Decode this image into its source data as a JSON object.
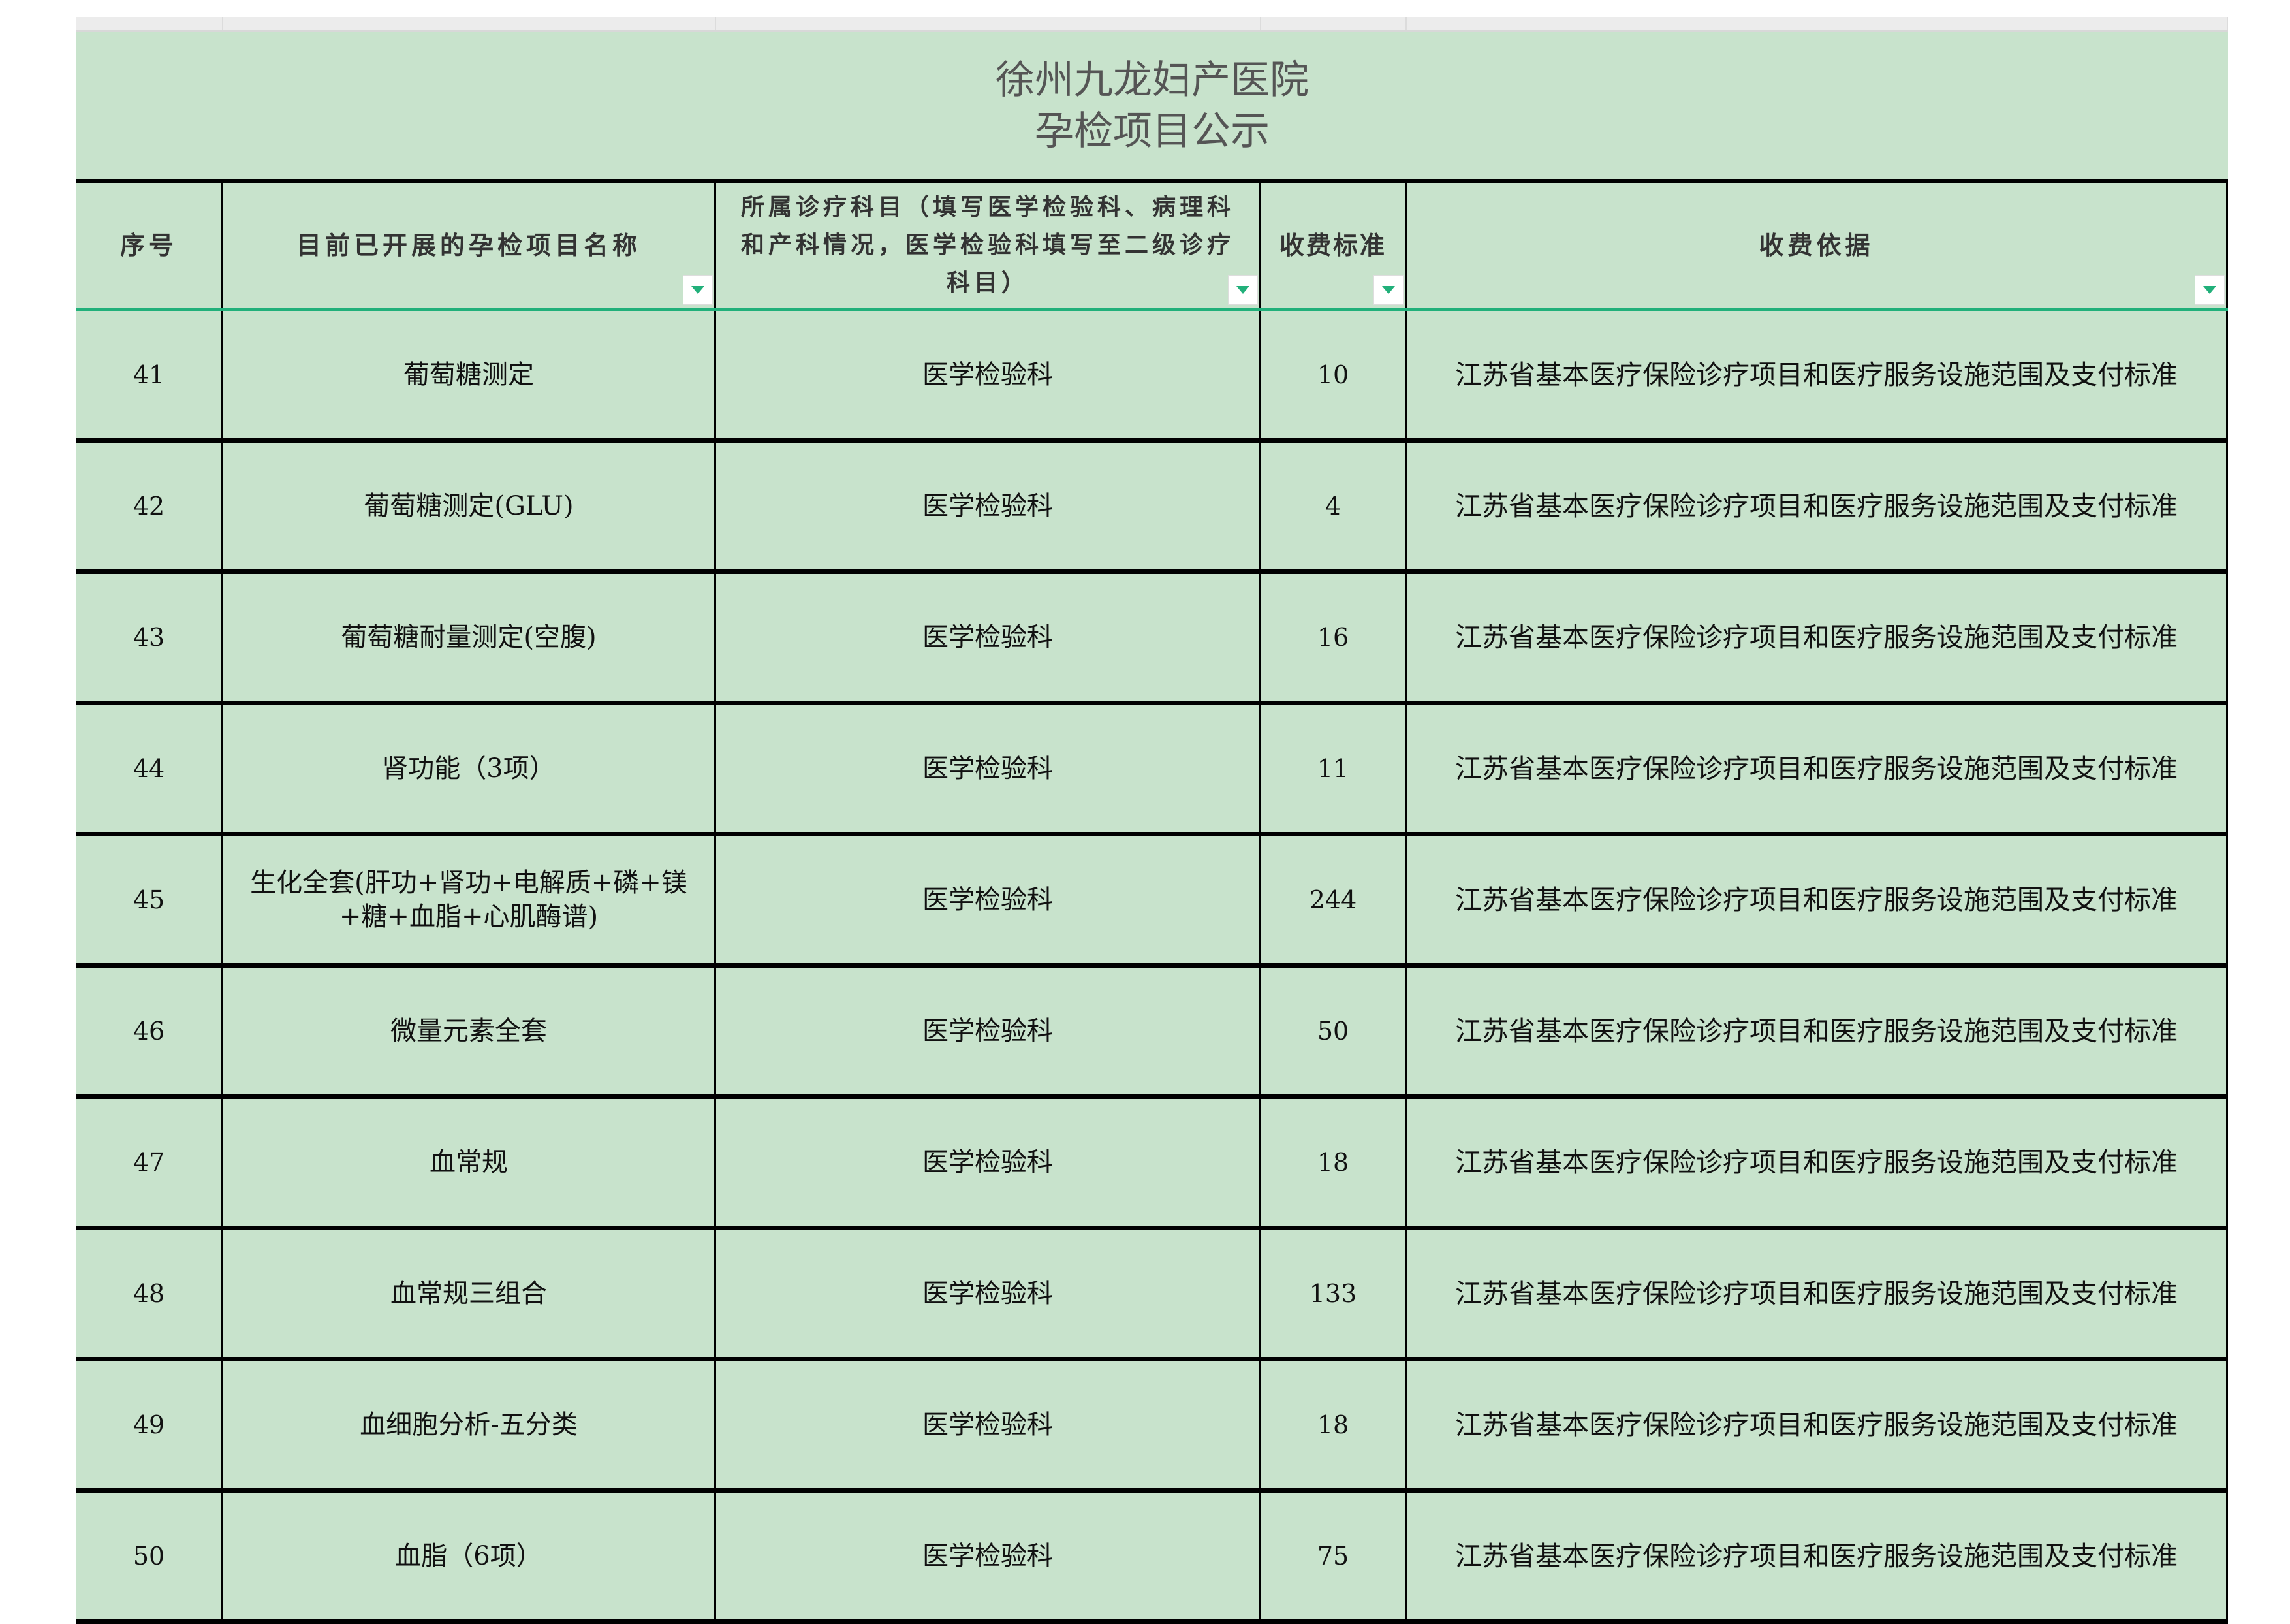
{
  "title": {
    "line1": "徐州九龙妇产医院",
    "line2": "孕检项目公示"
  },
  "headers": [
    "序号",
    "目前已开展的孕检项目名称",
    "所属诊疗科目（填写医学检验科、病理科和产科情况，医学检验科填写至二级诊疗科目）",
    "收费标准",
    "收费依据"
  ],
  "filter_icon": "dropdown-filter-icon",
  "accent_color": "#21b07a",
  "background_color": "#c8e3cc",
  "rows": [
    {
      "no": "41",
      "name": "葡萄糖测定",
      "dept": "医学检验科",
      "fee": "10",
      "basis": "江苏省基本医疗保险诊疗项目和医疗服务设施范围及支付标准"
    },
    {
      "no": "42",
      "name": "葡萄糖测定(GLU)",
      "dept": "医学检验科",
      "fee": "4",
      "basis": "江苏省基本医疗保险诊疗项目和医疗服务设施范围及支付标准"
    },
    {
      "no": "43",
      "name": "葡萄糖耐量测定(空腹)",
      "dept": "医学检验科",
      "fee": "16",
      "basis": "江苏省基本医疗保险诊疗项目和医疗服务设施范围及支付标准"
    },
    {
      "no": "44",
      "name": "肾功能（3项）",
      "dept": "医学检验科",
      "fee": "11",
      "basis": "江苏省基本医疗保险诊疗项目和医疗服务设施范围及支付标准"
    },
    {
      "no": "45",
      "name": "生化全套(肝功+肾功+电解质+磷+镁+糖+血脂+心肌酶谱)",
      "dept": "医学检验科",
      "fee": "244",
      "basis": "江苏省基本医疗保险诊疗项目和医疗服务设施范围及支付标准"
    },
    {
      "no": "46",
      "name": "微量元素全套",
      "dept": "医学检验科",
      "fee": "50",
      "basis": "江苏省基本医疗保险诊疗项目和医疗服务设施范围及支付标准"
    },
    {
      "no": "47",
      "name": "血常规",
      "dept": "医学检验科",
      "fee": "18",
      "basis": "江苏省基本医疗保险诊疗项目和医疗服务设施范围及支付标准"
    },
    {
      "no": "48",
      "name": "血常规三组合",
      "dept": "医学检验科",
      "fee": "133",
      "basis": "江苏省基本医疗保险诊疗项目和医疗服务设施范围及支付标准"
    },
    {
      "no": "49",
      "name": "血细胞分析-五分类",
      "dept": "医学检验科",
      "fee": "18",
      "basis": "江苏省基本医疗保险诊疗项目和医疗服务设施范围及支付标准"
    },
    {
      "no": "50",
      "name": "血脂（6项）",
      "dept": "医学检验科",
      "fee": "75",
      "basis": "江苏省基本医疗保险诊疗项目和医疗服务设施范围及支付标准"
    }
  ]
}
